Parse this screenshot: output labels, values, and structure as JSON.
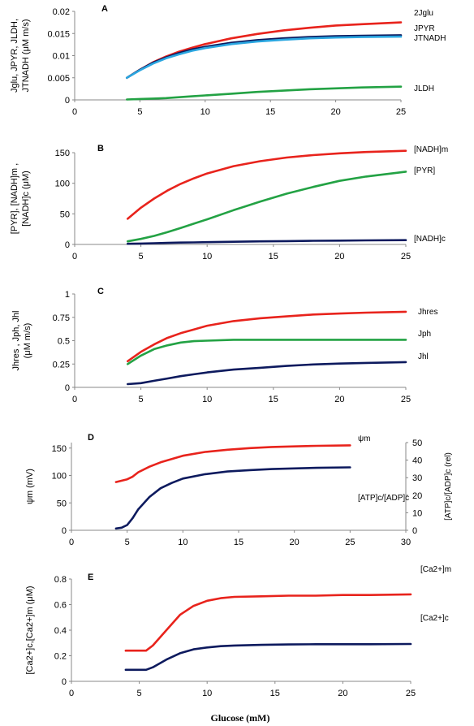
{
  "xlabel": "Glucose (mM)",
  "chart_data": [
    {
      "panel": "A",
      "type": "line",
      "ylabel_lines": [
        "Jglu, JPYR, JLDH,",
        "JTNADH (μM m/s)"
      ],
      "xlim": [
        0,
        25
      ],
      "ylim": [
        0,
        0.02
      ],
      "xticks": [
        0,
        5,
        10,
        15,
        20,
        25
      ],
      "yticks": [
        0,
        0.005,
        0.01,
        0.015,
        0.02
      ],
      "ytick_labels": [
        "0",
        "0.005",
        "0.01",
        "0.015",
        "0.02"
      ],
      "series": [
        {
          "name": "2Jglu",
          "color": "#e8231c",
          "x": [
            4,
            5,
            6,
            7,
            8,
            9,
            10,
            12,
            14,
            16,
            18,
            20,
            22,
            25
          ],
          "y": [
            0.005,
            0.0068,
            0.0085,
            0.0098,
            0.0109,
            0.0118,
            0.0126,
            0.0139,
            0.0149,
            0.0157,
            0.0163,
            0.0168,
            0.0171,
            0.0175
          ]
        },
        {
          "name": "JPYR",
          "color": "#0d1a5e",
          "x": [
            4,
            5,
            6,
            7,
            8,
            9,
            10,
            12,
            14,
            16,
            18,
            20,
            22,
            25
          ],
          "y": [
            0.005,
            0.0068,
            0.0084,
            0.0096,
            0.0106,
            0.0114,
            0.012,
            0.0129,
            0.0135,
            0.0139,
            0.0142,
            0.0144,
            0.0145,
            0.0146
          ]
        },
        {
          "name": "JTNADH",
          "color": "#2aa6e0",
          "x": [
            4,
            5,
            6,
            7,
            8,
            9,
            10,
            12,
            14,
            16,
            18,
            20,
            22,
            25
          ],
          "y": [
            0.005,
            0.0067,
            0.0082,
            0.0094,
            0.0103,
            0.0111,
            0.0117,
            0.0126,
            0.0132,
            0.0136,
            0.0139,
            0.0141,
            0.0142,
            0.0143
          ]
        },
        {
          "name": "JLDH",
          "color": "#23a244",
          "x": [
            4,
            5,
            6,
            7,
            8,
            9,
            10,
            12,
            14,
            16,
            18,
            20,
            22,
            25
          ],
          "y": [
            0.0001,
            0.0002,
            0.0003,
            0.0004,
            0.0006,
            0.0008,
            0.001,
            0.0014,
            0.0018,
            0.0021,
            0.0024,
            0.0026,
            0.0028,
            0.003
          ]
        }
      ],
      "series_labels": [
        "2Jglu",
        "JPYR",
        "JTNADH",
        "JLDH"
      ]
    },
    {
      "panel": "B",
      "type": "line",
      "ylabel_lines": [
        "[PYR], [NADH]m ,",
        "[NADH]c (μM)"
      ],
      "xlim": [
        0,
        25
      ],
      "ylim": [
        0,
        150
      ],
      "xticks": [
        0,
        5,
        10,
        15,
        20,
        25
      ],
      "yticks": [
        0,
        50,
        100,
        150
      ],
      "ytick_labels": [
        "0",
        "50",
        "100",
        "150"
      ],
      "series": [
        {
          "name": "[NADH]m",
          "color": "#e8231c",
          "x": [
            4,
            5,
            6,
            7,
            8,
            9,
            10,
            12,
            14,
            16,
            18,
            20,
            22,
            25
          ],
          "y": [
            42,
            60,
            75,
            88,
            99,
            108,
            116,
            128,
            136,
            142,
            146,
            149,
            151,
            153
          ]
        },
        {
          "name": "[PYR]",
          "color": "#23a244",
          "x": [
            4,
            5,
            6,
            7,
            8,
            9,
            10,
            12,
            14,
            16,
            18,
            20,
            22,
            25
          ],
          "y": [
            5,
            9,
            14,
            20,
            27,
            34,
            41,
            56,
            70,
            83,
            94,
            104,
            111,
            119
          ]
        },
        {
          "name": "[NADH]c",
          "color": "#0d1a5e",
          "x": [
            4,
            5,
            6,
            7,
            8,
            9,
            10,
            12,
            14,
            16,
            18,
            20,
            22,
            25
          ],
          "y": [
            1,
            1.5,
            2,
            2.5,
            3,
            3.3,
            3.7,
            4.4,
            5,
            5.5,
            6,
            6.3,
            6.6,
            7
          ]
        }
      ],
      "series_labels": [
        "[NADH]m",
        "[PYR]",
        "[NADH]c"
      ]
    },
    {
      "panel": "C",
      "type": "line",
      "ylabel_lines": [
        "Jhres , Jph, Jhl",
        "(μM m/s)"
      ],
      "xlim": [
        0,
        25
      ],
      "ylim": [
        0,
        1
      ],
      "xticks": [
        0,
        5,
        10,
        15,
        20,
        25
      ],
      "yticks": [
        0,
        0.25,
        0.5,
        0.75,
        1
      ],
      "ytick_labels": [
        "0",
        "0.25",
        "0.5",
        "0.75",
        "1"
      ],
      "series": [
        {
          "name": "Jhres",
          "color": "#e8231c",
          "x": [
            4,
            5,
            6,
            7,
            8,
            9,
            10,
            12,
            14,
            16,
            18,
            20,
            22,
            25
          ],
          "y": [
            0.28,
            0.38,
            0.46,
            0.53,
            0.58,
            0.62,
            0.66,
            0.71,
            0.74,
            0.76,
            0.78,
            0.79,
            0.8,
            0.81
          ]
        },
        {
          "name": "Jph",
          "color": "#23a244",
          "x": [
            4,
            5,
            6,
            7,
            8,
            9,
            10,
            12,
            14,
            16,
            18,
            20,
            22,
            25
          ],
          "y": [
            0.25,
            0.34,
            0.41,
            0.45,
            0.48,
            0.495,
            0.5,
            0.51,
            0.51,
            0.51,
            0.51,
            0.51,
            0.51,
            0.51
          ]
        },
        {
          "name": "Jhl",
          "color": "#0d1a5e",
          "x": [
            4,
            5,
            6,
            7,
            8,
            9,
            10,
            12,
            14,
            16,
            18,
            20,
            22,
            25
          ],
          "y": [
            0.035,
            0.045,
            0.07,
            0.095,
            0.12,
            0.14,
            0.16,
            0.19,
            0.21,
            0.23,
            0.245,
            0.255,
            0.262,
            0.27
          ]
        }
      ],
      "series_labels": [
        "Jhres",
        "Jph",
        "Jhl"
      ]
    },
    {
      "panel": "D",
      "type": "line",
      "ylabel_lines": [
        "ψm (mV)"
      ],
      "ylabel_right": "[ATP]c/[ADP]c (rel)",
      "xlim": [
        0,
        30
      ],
      "ylim": [
        0,
        160
      ],
      "ylim_right": [
        0,
        50
      ],
      "xticks": [
        0,
        5,
        10,
        15,
        20,
        25,
        30
      ],
      "yticks": [
        0,
        50,
        100,
        150
      ],
      "ytick_labels": [
        "0",
        "50",
        "100",
        "150"
      ],
      "yticks_right": [
        0,
        10,
        20,
        30,
        40,
        50
      ],
      "ytick_labels_right": [
        "0",
        "10",
        "20",
        "30",
        "40",
        "50"
      ],
      "series": [
        {
          "name": "ψm",
          "color": "#e8231c",
          "axis": "left",
          "x": [
            4,
            5,
            5.5,
            6,
            7,
            8,
            9,
            10,
            12,
            14,
            16,
            18,
            20,
            22,
            25
          ],
          "y": [
            88,
            93,
            98,
            106,
            116,
            124,
            130,
            136,
            143,
            147,
            150,
            152,
            153,
            154,
            155
          ]
        },
        {
          "name": "[ATP]c/[ADP]c",
          "color": "#0d1a5e",
          "axis": "right",
          "x": [
            4,
            4.5,
            5,
            5.5,
            6,
            7,
            8,
            9,
            10,
            12,
            14,
            16,
            18,
            20,
            22,
            25
          ],
          "y": [
            1,
            1.5,
            3,
            7,
            12,
            19,
            24,
            27,
            29.5,
            32,
            33.5,
            34.3,
            34.9,
            35.3,
            35.6,
            35.9
          ]
        }
      ],
      "series_labels": [
        "ψm",
        "[ATP]c/[ADP]c"
      ]
    },
    {
      "panel": "E",
      "type": "line",
      "ylabel_lines": [
        "[Ca2+]c,[Ca2+]m (μM)"
      ],
      "xlim": [
        0,
        25
      ],
      "ylim": [
        0,
        0.8
      ],
      "xticks": [
        0,
        5,
        10,
        15,
        20,
        25
      ],
      "yticks": [
        0,
        0.2,
        0.4,
        0.6,
        0.8
      ],
      "ytick_labels": [
        "0",
        "0.2",
        "0.4",
        "0.6",
        "0.8"
      ],
      "series": [
        {
          "name": "[Ca2+]m",
          "color": "#e8231c",
          "x": [
            4,
            5,
            5.5,
            6,
            7,
            8,
            9,
            10,
            11,
            12,
            14,
            16,
            18,
            20,
            22,
            25
          ],
          "y": [
            0.24,
            0.24,
            0.24,
            0.28,
            0.4,
            0.52,
            0.59,
            0.63,
            0.65,
            0.66,
            0.665,
            0.67,
            0.67,
            0.675,
            0.675,
            0.68
          ]
        },
        {
          "name": "[Ca2+]c",
          "color": "#0d1a5e",
          "x": [
            4,
            5,
            5.5,
            6,
            7,
            8,
            9,
            10,
            11,
            12,
            14,
            16,
            18,
            20,
            22,
            25
          ],
          "y": [
            0.09,
            0.09,
            0.09,
            0.11,
            0.17,
            0.22,
            0.25,
            0.265,
            0.275,
            0.28,
            0.285,
            0.288,
            0.29,
            0.29,
            0.29,
            0.292
          ]
        }
      ],
      "series_labels": [
        "[Ca2+]m",
        "[Ca2+]c"
      ]
    }
  ]
}
